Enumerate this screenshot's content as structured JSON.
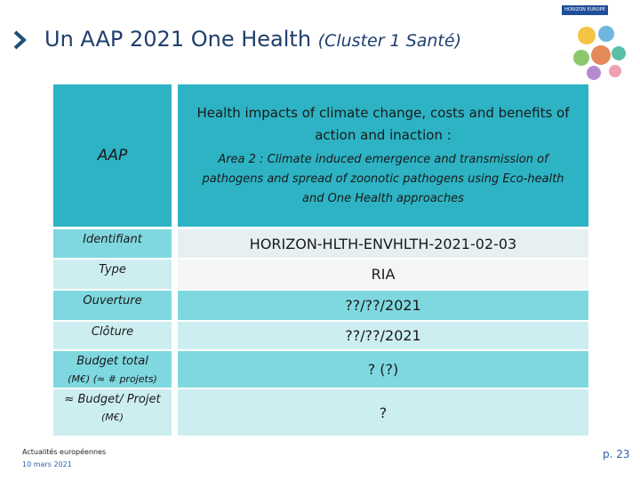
{
  "header": {
    "title": "Un AAP 2021 One Health",
    "subtitle": "(Cluster 1 Santé)",
    "logo_text": "HORIZON EUROPE"
  },
  "table": {
    "rows": [
      {
        "label": "AAP",
        "heading": "Health impacts of climate change, costs and benefits of action and inaction :",
        "detail": "Area 2 : Climate induced emergence and transmission of pathogens and spread of zoonotic pathogens using Eco-health  and One Health  approaches"
      },
      {
        "label": "Identifiant",
        "value": "HORIZON-HLTH-ENVHLTH-2021-02-03"
      },
      {
        "label": "Type",
        "value": "RIA"
      },
      {
        "label": "Ouverture",
        "value": "??/??/2021"
      },
      {
        "label": "Clôture",
        "value": "??/??/2021"
      },
      {
        "label": "Budget total",
        "sublabel": "(M€) (≈ # projets)",
        "value": "? (?)"
      },
      {
        "label": "≈ Budget/ Projet",
        "sublabel": "(M€)",
        "value": "?"
      }
    ]
  },
  "footer": {
    "source": "Actualités européennes",
    "date": "10 mars 2021",
    "page": "p. 23"
  }
}
